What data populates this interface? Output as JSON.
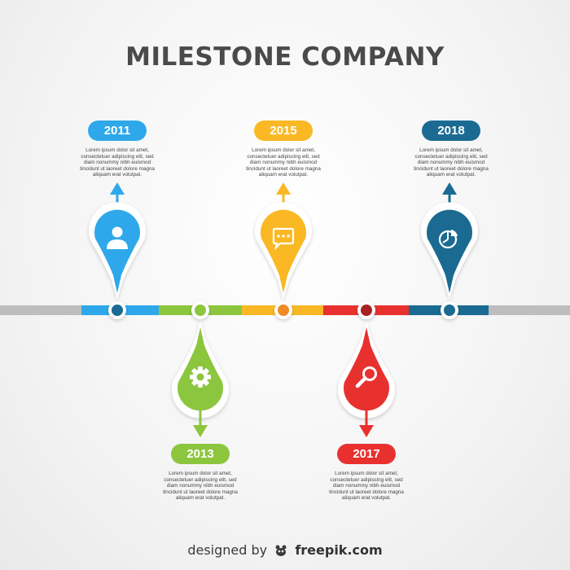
{
  "title": "MILESTONE COMPANY",
  "milestones": [
    {
      "year": "2011",
      "color": "#2ea8ea",
      "icon": "person-icon",
      "side": "top",
      "desc": [
        "Lorem ipsum dolor sit amet,",
        "consectetuer adipiscing elit, sed",
        "diam nonummy nibh euismod",
        "tincidunt ut laoreet dolore magna",
        "aliquam erat volutpat."
      ]
    },
    {
      "year": "2013",
      "color": "#8cc63e",
      "icon": "gear-icon",
      "side": "bottom",
      "desc": [
        "Lorem ipsum dolor sit amet,",
        "consectetuer adipiscing elit, sed",
        "diam nonummy nibh euismod",
        "tincidunt ut laoreet dolore magna",
        "aliquam erat volutpat."
      ]
    },
    {
      "year": "2015",
      "color": "#f9b824",
      "icon": "chat-bubble-icon",
      "side": "top",
      "desc": [
        "Lorem ipsum dolor sit amet,",
        "consectetuer adipiscing elit, sed",
        "diam nonummy nibh euismod",
        "tincidunt ut laoreet dolore magna",
        "aliquam erat volutpat."
      ]
    },
    {
      "year": "2017",
      "color": "#e8312f",
      "icon": "magnifier-icon",
      "side": "bottom",
      "desc": [
        "Lorem ipsum dolor sit amet,",
        "consectetuer adipiscing elit, sed",
        "diam nonummy nibh euismod",
        "tincidunt ut laoreet dolore magna",
        "aliquam erat volutpat."
      ]
    },
    {
      "year": "2018",
      "color": "#1b6a91",
      "icon": "pie-chart-icon",
      "side": "top",
      "desc": [
        "Lorem ipsum dolor sit amet,",
        "consectetuer adipiscing elit, sed",
        "diam nonummy nibh euismod",
        "tincidunt ut laoreet dolore magna",
        "aliquam erat volutpat."
      ]
    }
  ],
  "footer": {
    "prefix": "designed by",
    "brand": "freepik.com"
  },
  "colors": {
    "track": "#bdbdbd",
    "title": "#4a4a4a"
  }
}
